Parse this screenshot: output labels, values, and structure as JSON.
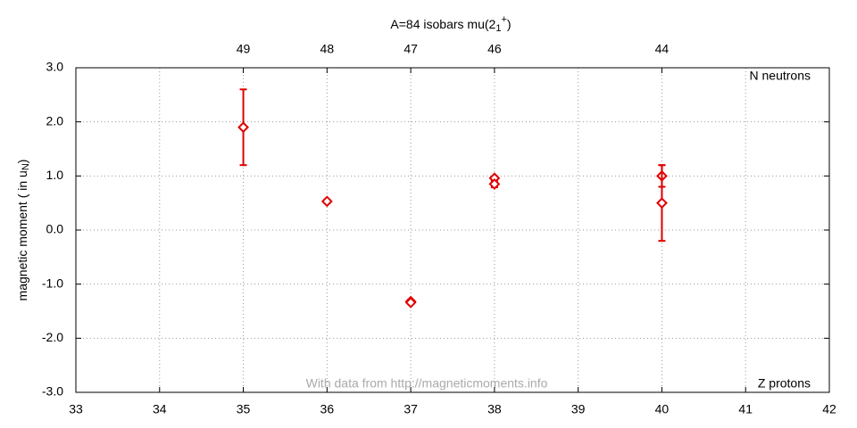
{
  "chart_data": {
    "type": "scatter",
    "title": "A=84 isobars mu(2",
    "title_sub": "1",
    "title_sup": "+",
    "title_end": ")",
    "y_label": "magnetic moment ( in u",
    "y_label_sub": "N",
    "y_label_end": ")",
    "annotations": [
      "N neutrons",
      "Z protons",
      "With data from http://magneticmoments.info"
    ],
    "x": [
      35,
      36,
      37,
      37,
      38,
      38,
      40,
      40
    ],
    "values": [
      1.9,
      0.53,
      -1.32,
      -1.34,
      0.96,
      0.85,
      1.0,
      0.5
    ],
    "errors": [
      0.7,
      0.03,
      0.03,
      0.03,
      0.03,
      0.06,
      0.2,
      0.7
    ],
    "color": "#e00000",
    "xlim": [
      33,
      42
    ],
    "xticks": [
      33,
      34,
      35,
      36,
      37,
      38,
      39,
      40,
      41,
      42
    ],
    "x2ticks": [
      {
        "value": 35,
        "label": "49"
      },
      {
        "value": 36,
        "label": "48"
      },
      {
        "value": 37,
        "label": "47"
      },
      {
        "value": 38,
        "label": "46"
      },
      {
        "value": 40,
        "label": "44"
      }
    ],
    "ylim": [
      -3,
      3
    ],
    "yticks": [
      {
        "value": 3,
        "label": "3.0"
      },
      {
        "value": 2,
        "label": "2.0"
      },
      {
        "value": 1,
        "label": "1.0"
      },
      {
        "value": 0,
        "label": "0.0"
      },
      {
        "value": -1,
        "label": "-1.0"
      },
      {
        "value": -2,
        "label": "-2.0"
      },
      {
        "value": -3,
        "label": "-3.0"
      }
    ],
    "grid": true
  }
}
